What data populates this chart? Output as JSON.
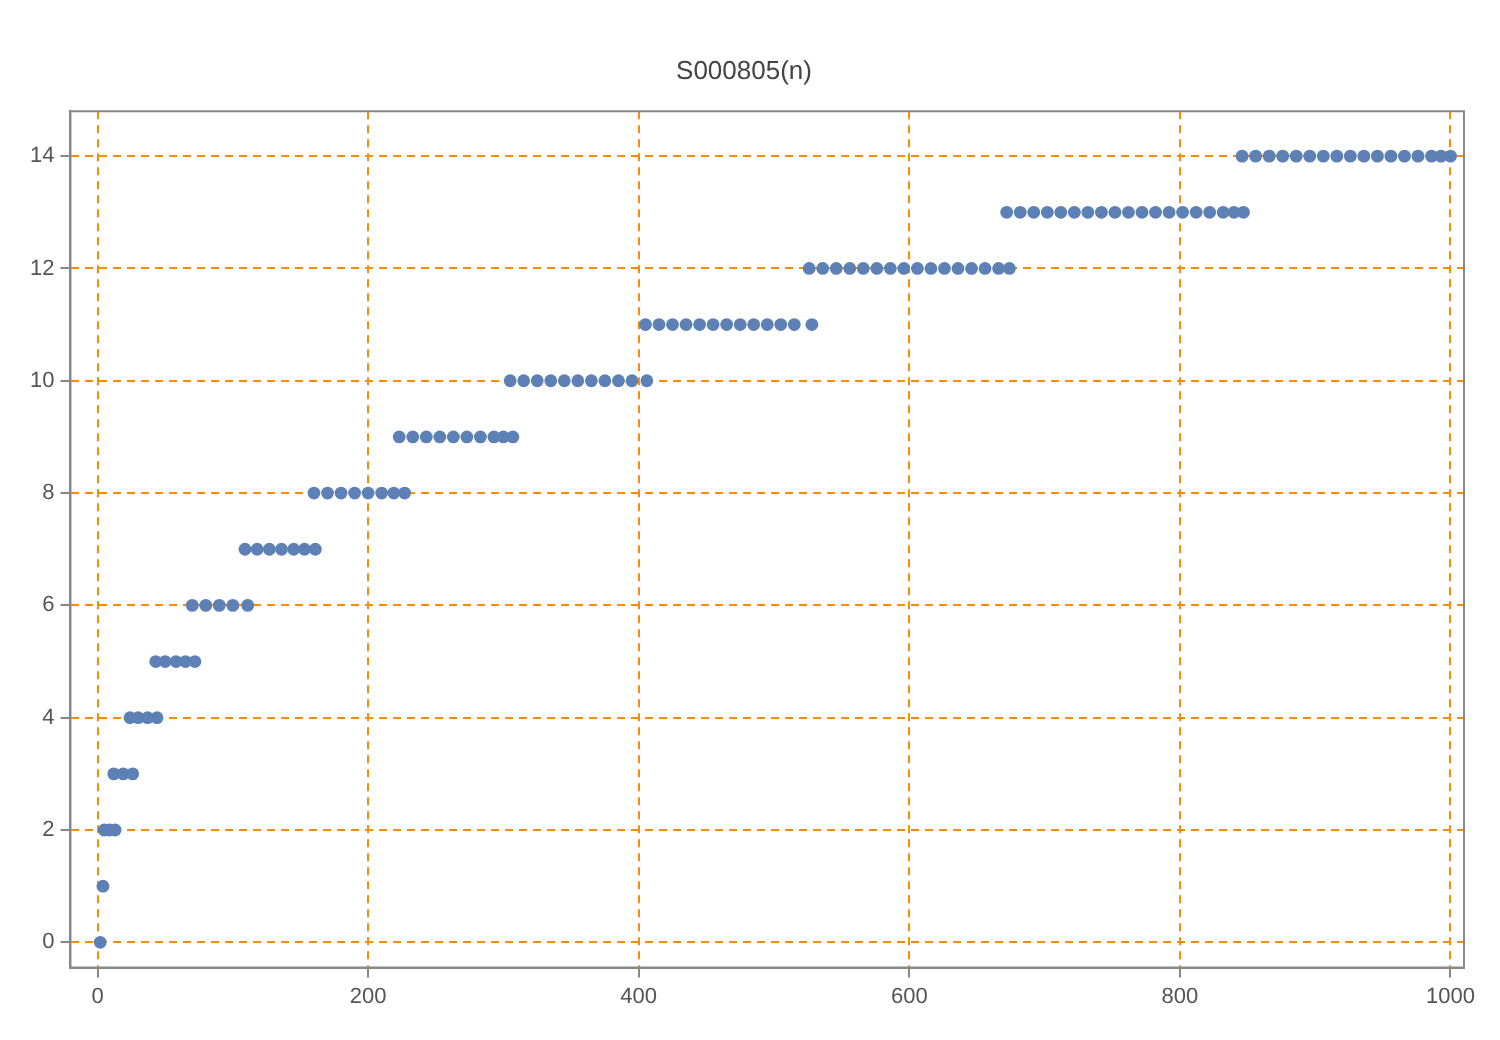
{
  "chart_data": {
    "type": "scatter",
    "title": "S000805(n)",
    "marker": "circle",
    "grid": true,
    "xlim": [
      -20,
      1010
    ],
    "ylim": [
      -0.45,
      14.8
    ],
    "xticks": [
      0,
      200,
      400,
      600,
      800,
      1000
    ],
    "yticks": [
      0,
      2,
      4,
      6,
      8,
      10,
      12,
      14
    ],
    "series": [
      {
        "color": "#5e81b5",
        "x": [
          2,
          4,
          5,
          9,
          13,
          12,
          19,
          26,
          24,
          30,
          37,
          44,
          43,
          50,
          58,
          65,
          72,
          70,
          80,
          90,
          100,
          111,
          109,
          118,
          127,
          136,
          145,
          153,
          161,
          160,
          170,
          180,
          190,
          200,
          210,
          219,
          227,
          223,
          233,
          243,
          253,
          263,
          273,
          283,
          293,
          300,
          307,
          305,
          315,
          325,
          335,
          345,
          355,
          365,
          375,
          385,
          395,
          406,
          405,
          415,
          425,
          435,
          445,
          455,
          465,
          475,
          485,
          495,
          505,
          515,
          528,
          526,
          536,
          546,
          556,
          566,
          576,
          586,
          596,
          606,
          616,
          626,
          636,
          646,
          656,
          666,
          674,
          672,
          682,
          692,
          702,
          712,
          722,
          732,
          742,
          752,
          762,
          772,
          782,
          792,
          802,
          812,
          822,
          832,
          840,
          847,
          846,
          856,
          866,
          876,
          886,
          896,
          906,
          916,
          926,
          936,
          946,
          956,
          966,
          976,
          986,
          993,
          1000
        ],
        "values": [
          0,
          1,
          2,
          2,
          2,
          3,
          3,
          3,
          4,
          4,
          4,
          4,
          5,
          5,
          5,
          5,
          5,
          6,
          6,
          6,
          6,
          6,
          7,
          7,
          7,
          7,
          7,
          7,
          7,
          8,
          8,
          8,
          8,
          8,
          8,
          8,
          8,
          9,
          9,
          9,
          9,
          9,
          9,
          9,
          9,
          9,
          9,
          10,
          10,
          10,
          10,
          10,
          10,
          10,
          10,
          10,
          10,
          10,
          11,
          11,
          11,
          11,
          11,
          11,
          11,
          11,
          11,
          11,
          11,
          11,
          11,
          12,
          12,
          12,
          12,
          12,
          12,
          12,
          12,
          12,
          12,
          12,
          12,
          12,
          12,
          12,
          12,
          13,
          13,
          13,
          13,
          13,
          13,
          13,
          13,
          13,
          13,
          13,
          13,
          13,
          13,
          13,
          13,
          13,
          13,
          13,
          14,
          14,
          14,
          14,
          14,
          14,
          14,
          14,
          14,
          14,
          14,
          14,
          14,
          14,
          14,
          14,
          14
        ]
      }
    ]
  }
}
